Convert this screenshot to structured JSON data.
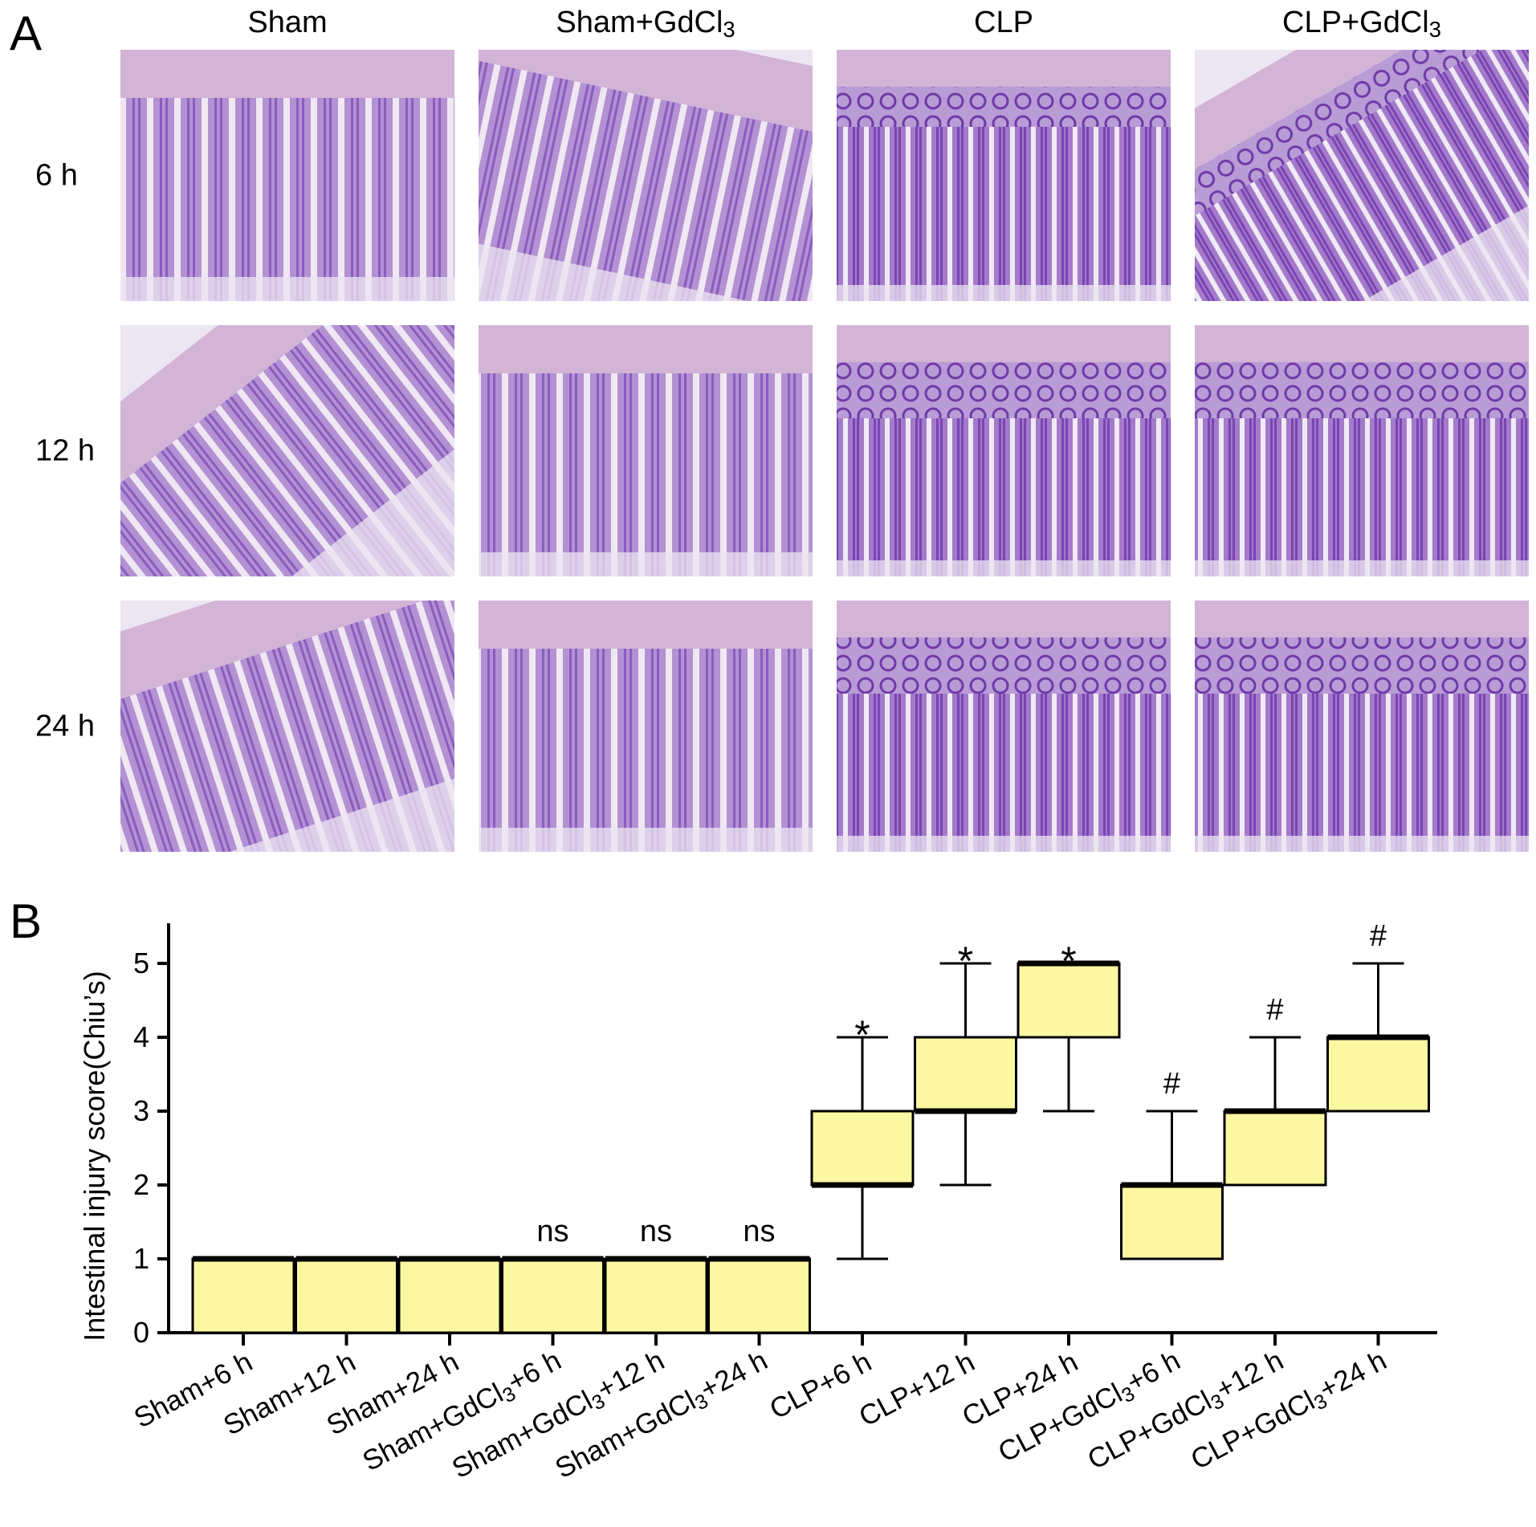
{
  "panel_a": {
    "letter": "A",
    "columns": [
      {
        "label": "Sham",
        "sub": ""
      },
      {
        "label": "Sham+GdCl",
        "sub": "3"
      },
      {
        "label": "CLP",
        "sub": ""
      },
      {
        "label": "CLP+GdCl",
        "sub": "3"
      }
    ],
    "rows": [
      "6 h",
      "12 h",
      "24 h"
    ],
    "tile_colors": {
      "background": "#ece6f2",
      "tissue": "#a37cc9",
      "crypt": "#7a45b3",
      "mucosa_edge": "#d3b3d6"
    }
  },
  "panel_b": {
    "letter": "B",
    "chart_data": {
      "type": "box",
      "ylabel": "Intestinal injury score(Chiu’s)",
      "ylim": [
        0,
        5.5
      ],
      "yticks": [
        0,
        1,
        2,
        3,
        4,
        5
      ],
      "box_color": "#fcf7a1",
      "categories": [
        {
          "label": "Sham+6 h",
          "pre": "Sham+6 h",
          "sub": "",
          "post": ""
        },
        {
          "label": "Sham+12 h",
          "pre": "Sham+12 h",
          "sub": "",
          "post": ""
        },
        {
          "label": "Sham+24 h",
          "pre": "Sham+24 h",
          "sub": "",
          "post": ""
        },
        {
          "label": "Sham+GdCl3+6 h",
          "pre": "Sham+GdCl",
          "sub": "3",
          "post": "+6 h"
        },
        {
          "label": "Sham+GdCl3+12 h",
          "pre": "Sham+GdCl",
          "sub": "3",
          "post": "+12 h"
        },
        {
          "label": "Sham+GdCl3+24 h",
          "pre": "Sham+GdCl",
          "sub": "3",
          "post": "+24 h"
        },
        {
          "label": "CLP+6 h",
          "pre": "CLP+6 h",
          "sub": "",
          "post": ""
        },
        {
          "label": "CLP+12 h",
          "pre": "CLP+12 h",
          "sub": "",
          "post": ""
        },
        {
          "label": "CLP+24 h",
          "pre": "CLP+24 h",
          "sub": "",
          "post": ""
        },
        {
          "label": "CLP+GdCl3+6 h",
          "pre": "CLP+GdCl",
          "sub": "3",
          "post": "+6 h"
        },
        {
          "label": "CLP+GdCl3+12 h",
          "pre": "CLP+GdCl",
          "sub": "3",
          "post": "+12 h"
        },
        {
          "label": "CLP+GdCl3+24 h",
          "pre": "CLP+GdCl",
          "sub": "3",
          "post": "+24 h"
        }
      ],
      "boxes": [
        {
          "min": 0,
          "q1": 0,
          "median": 1,
          "q3": 1,
          "max": 1,
          "annotation": ""
        },
        {
          "min": 0,
          "q1": 0,
          "median": 1,
          "q3": 1,
          "max": 1,
          "annotation": ""
        },
        {
          "min": 0,
          "q1": 0,
          "median": 1,
          "q3": 1,
          "max": 1,
          "annotation": ""
        },
        {
          "min": 0,
          "q1": 0,
          "median": 1,
          "q3": 1,
          "max": 1,
          "annotation": "ns"
        },
        {
          "min": 0,
          "q1": 0,
          "median": 1,
          "q3": 1,
          "max": 1,
          "annotation": "ns"
        },
        {
          "min": 0,
          "q1": 0,
          "median": 1,
          "q3": 1,
          "max": 1,
          "annotation": "ns"
        },
        {
          "min": 1,
          "q1": 2,
          "median": 2,
          "q3": 3,
          "max": 4,
          "annotation": "*"
        },
        {
          "min": 2,
          "q1": 3,
          "median": 3,
          "q3": 4,
          "max": 5,
          "annotation": "*"
        },
        {
          "min": 3,
          "q1": 4,
          "median": 5,
          "q3": 5,
          "max": 5,
          "annotation": "*"
        },
        {
          "min": 1,
          "q1": 1,
          "median": 2,
          "q3": 2,
          "max": 3,
          "annotation": "#"
        },
        {
          "min": 2,
          "q1": 2,
          "median": 3,
          "q3": 3,
          "max": 4,
          "annotation": "#"
        },
        {
          "min": 3,
          "q1": 3,
          "median": 4,
          "q3": 4,
          "max": 5,
          "annotation": "#"
        }
      ]
    }
  }
}
